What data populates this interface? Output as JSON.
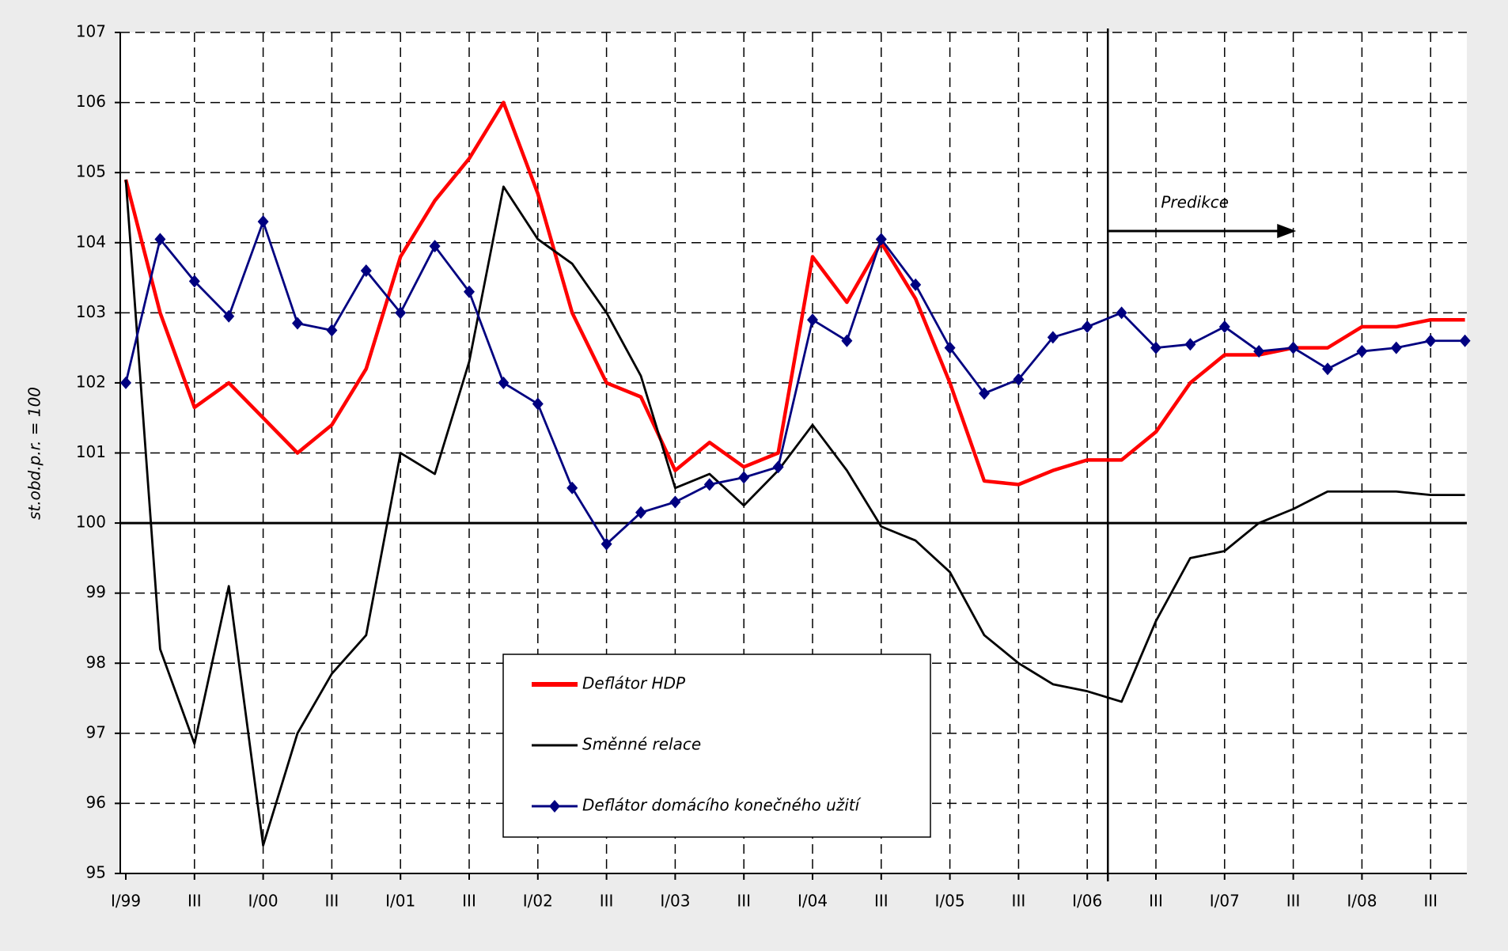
{
  "chart_data": {
    "type": "line",
    "y_label": "st.obd.p.r. = 100",
    "annotation": "Predikce",
    "categories": [
      "I/99",
      null,
      "III",
      null,
      "I/00",
      null,
      "III",
      null,
      "I/01",
      null,
      "III",
      null,
      "I/02",
      null,
      "III",
      null,
      "I/03",
      null,
      "III",
      null,
      "I/04",
      null,
      "III",
      null,
      "I/05",
      null,
      "III",
      null,
      "I/06",
      null,
      "III",
      null,
      "I/07",
      null,
      "III",
      null,
      "I/08",
      null,
      "III",
      null
    ],
    "series": [
      {
        "name": "Deflátor HDP",
        "color": "#ff0000",
        "values": [
          104.9,
          103.0,
          101.65,
          102.0,
          101.5,
          101.0,
          101.4,
          102.2,
          103.8,
          104.6,
          105.2,
          106.0,
          104.7,
          103.0,
          102.0,
          101.8,
          100.75,
          101.15,
          100.8,
          101.0,
          103.8,
          103.15,
          104.0,
          103.2,
          102.0,
          100.6,
          100.55,
          100.75,
          100.9,
          100.9,
          101.3,
          102.0,
          102.4,
          102.4,
          102.5,
          102.5,
          102.8,
          102.8,
          102.9,
          102.9
        ]
      },
      {
        "name": "Směnné relace",
        "color": "#000000",
        "values": [
          104.9,
          98.2,
          96.85,
          99.1,
          95.4,
          97.0,
          97.85,
          98.4,
          101.0,
          100.7,
          102.3,
          104.8,
          104.05,
          103.7,
          103.0,
          102.1,
          100.5,
          100.7,
          100.25,
          100.75,
          101.4,
          100.75,
          99.95,
          99.75,
          99.3,
          98.4,
          98.0,
          97.7,
          97.6,
          97.45,
          98.6,
          99.5,
          99.6,
          100.0,
          100.2,
          100.45,
          100.45,
          100.45,
          100.4,
          100.4
        ]
      },
      {
        "name": "Deflátor domácího konečného užití",
        "color": "#000080",
        "markers": true,
        "values": [
          102.0,
          104.05,
          103.45,
          102.95,
          104.3,
          102.85,
          102.75,
          103.6,
          103.0,
          103.95,
          103.3,
          102.0,
          101.7,
          100.5,
          99.7,
          100.15,
          100.3,
          100.55,
          100.65,
          100.8,
          102.9,
          102.6,
          104.05,
          103.4,
          102.5,
          101.85,
          102.05,
          102.65,
          102.8,
          103.0,
          102.5,
          102.55,
          102.8,
          102.45,
          102.5,
          102.2,
          102.45,
          102.5,
          102.6,
          102.6
        ]
      }
    ],
    "ylim": [
      95,
      107
    ],
    "yticks": [
      95,
      96,
      97,
      98,
      99,
      100,
      101,
      102,
      103,
      104,
      105,
      106,
      107
    ],
    "grid": true,
    "legend": "bottom"
  }
}
